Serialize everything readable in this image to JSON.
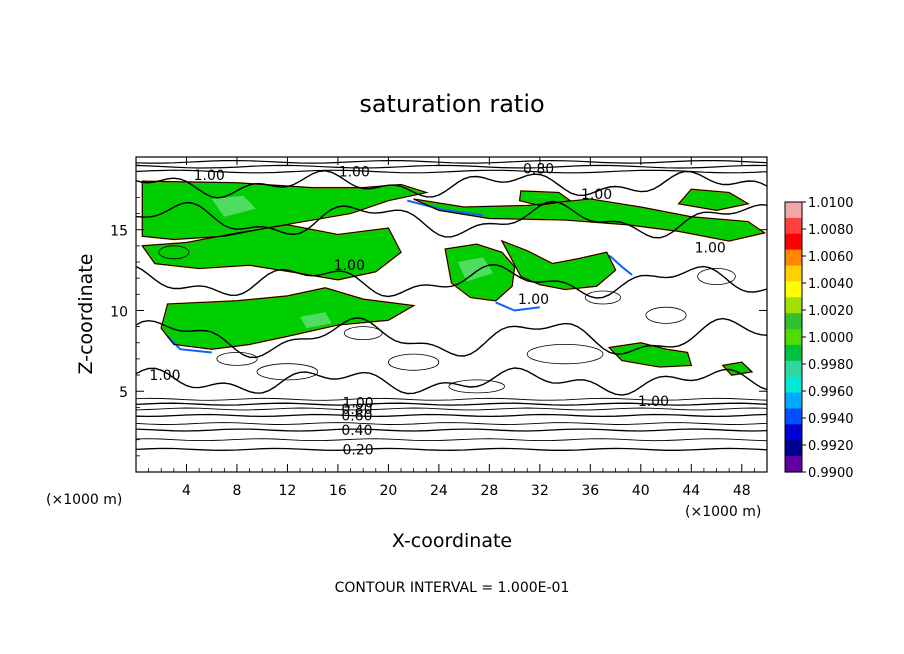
{
  "chart_data": {
    "type": "heatmap",
    "title": "saturation ratio",
    "xlabel": "X-coordinate",
    "ylabel": "Z-coordinate",
    "x_unit": "(×1000 m)",
    "y_unit": "(×1000 m)",
    "xlim": [
      0,
      50
    ],
    "ylim": [
      0,
      19.5
    ],
    "x_ticks": [
      4,
      8,
      12,
      16,
      20,
      24,
      28,
      32,
      36,
      40,
      44,
      48
    ],
    "x_tick_labels": [
      "4",
      "8",
      "12",
      "16",
      "20",
      "24",
      "28",
      "32",
      "36",
      "40",
      "44",
      "48"
    ],
    "y_ticks": [
      5,
      10,
      15
    ],
    "y_tick_labels": [
      "5",
      "10",
      "15"
    ],
    "colorbar": {
      "range": [
        0.99,
        1.01
      ],
      "labels": [
        "1.0100",
        "1.0080",
        "1.0060",
        "1.0040",
        "1.0020",
        "1.0000",
        "0.9980",
        "0.9960",
        "0.9940",
        "0.9920",
        "0.9900"
      ],
      "colors": [
        "#f0a8a8",
        "#ff4040",
        "#ff0000",
        "#ff8800",
        "#ffd000",
        "#ffff00",
        "#a0e000",
        "#30c030",
        "#50dc00",
        "#00c040",
        "#30d8a0",
        "#00e8d8",
        "#00a8ff",
        "#0050ff",
        "#0000d0",
        "#000090",
        "#6000a0"
      ]
    },
    "contour_labels": [
      {
        "x": 5.8,
        "z": 18.4,
        "text": "1.00"
      },
      {
        "x": 17.3,
        "z": 18.6,
        "text": "1.00"
      },
      {
        "x": 31.9,
        "z": 18.8,
        "text": "0.80"
      },
      {
        "x": 36.5,
        "z": 17.2,
        "text": "1.00"
      },
      {
        "x": 45.5,
        "z": 13.9,
        "text": "1.00"
      },
      {
        "x": 16.9,
        "z": 12.8,
        "text": "1.00"
      },
      {
        "x": 31.5,
        "z": 10.7,
        "text": "1.00"
      },
      {
        "x": 2.3,
        "z": 6.0,
        "text": "1.00"
      },
      {
        "x": 41.0,
        "z": 4.4,
        "text": "1.00"
      },
      {
        "x": 17.6,
        "z": 4.3,
        "text": "1.00"
      },
      {
        "x": 17.5,
        "z": 3.9,
        "text": "0.80"
      },
      {
        "x": 17.5,
        "z": 3.5,
        "text": "0.60"
      },
      {
        "x": 17.5,
        "z": 2.6,
        "text": "0.40"
      },
      {
        "x": 17.6,
        "z": 1.4,
        "text": "0.20"
      }
    ],
    "contour_interval_note": "CONTOUR INTERVAL = 1.000E-01"
  }
}
